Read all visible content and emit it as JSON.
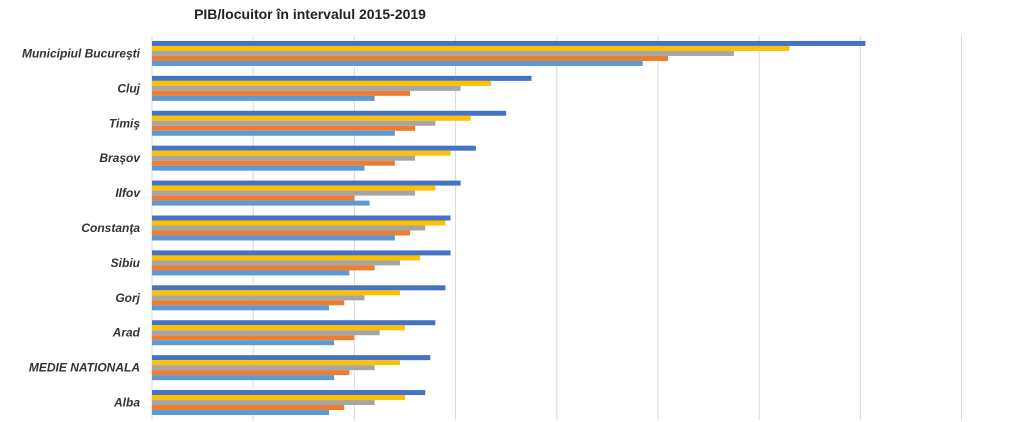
{
  "chart_data": {
    "type": "bar",
    "orientation": "horizontal",
    "title": "PIB/locuitor în intervalul 2015-2019",
    "xlabel": "",
    "ylabel": "",
    "xlim": [
      0,
      8.4
    ],
    "grid": true,
    "legend": "none",
    "categories": [
      "Municipiul Bucureşti",
      "Cluj",
      "Timiş",
      "Braşov",
      "Ilfov",
      "Constanţa",
      "Sibiu",
      "Gorj",
      "Arad",
      "MEDIE NATIONALA",
      "Alba"
    ],
    "series": [
      {
        "color": "#4472C4",
        "values": [
          7.05,
          3.75,
          3.5,
          3.2,
          3.05,
          2.95,
          2.95,
          2.9,
          2.8,
          2.75,
          2.7
        ]
      },
      {
        "color": "#FFC000",
        "values": [
          6.3,
          3.35,
          3.15,
          2.95,
          2.8,
          2.9,
          2.65,
          2.45,
          2.5,
          2.45,
          2.5
        ]
      },
      {
        "color": "#A5A5A5",
        "values": [
          5.75,
          3.05,
          2.8,
          2.6,
          2.6,
          2.7,
          2.45,
          2.1,
          2.25,
          2.2,
          2.2
        ]
      },
      {
        "color": "#ED7D31",
        "values": [
          5.1,
          2.55,
          2.6,
          2.4,
          2.0,
          2.55,
          2.2,
          1.9,
          2.0,
          1.95,
          1.9
        ]
      },
      {
        "color": "#5B9BD5",
        "values": [
          4.85,
          2.2,
          2.4,
          2.1,
          2.15,
          2.4,
          1.95,
          1.75,
          1.8,
          1.8,
          1.75
        ]
      }
    ]
  }
}
